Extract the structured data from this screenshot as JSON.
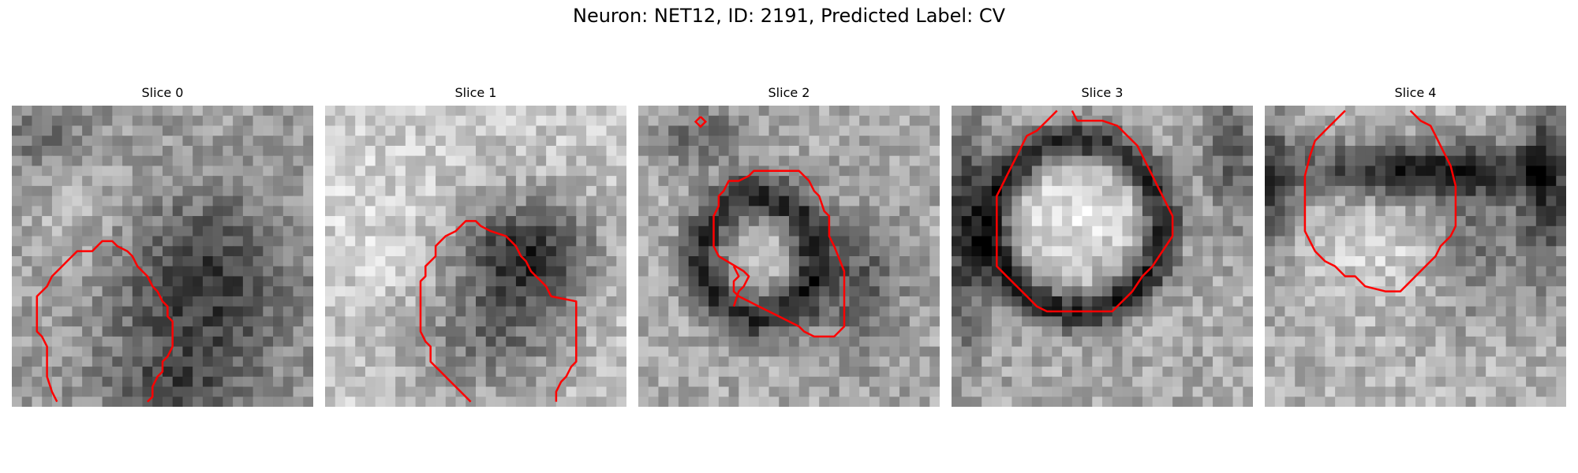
{
  "figure": {
    "title": "Neuron: NET12, ID: 2191, Predicted Label: CV"
  },
  "panels": [
    {
      "title": "Slice 0"
    },
    {
      "title": "Slice 1"
    },
    {
      "title": "Slice 2"
    },
    {
      "title": "Slice 3"
    },
    {
      "title": "Slice 4"
    }
  ],
  "colors": {
    "contour": "#ff0000"
  }
}
